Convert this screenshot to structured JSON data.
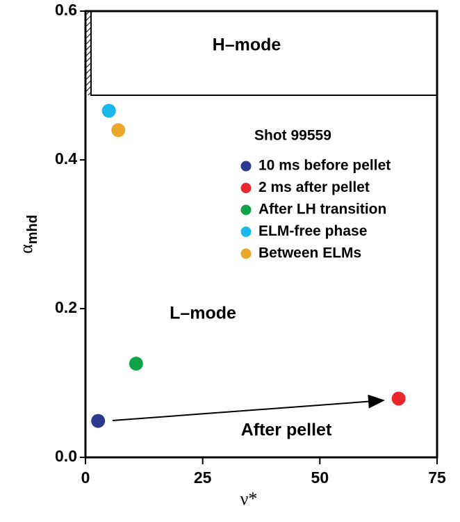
{
  "chart_data": {
    "type": "scatter",
    "xlabel": "ν*",
    "ylabel": "α",
    "ylabel_sub": "mhd",
    "xlim": [
      0,
      75
    ],
    "ylim": [
      0,
      0.6
    ],
    "xticks": [
      0,
      25,
      50,
      75
    ],
    "yticks": [
      {
        "value": 0,
        "label": "0.0"
      },
      {
        "value": 0.2,
        "label": "0.2"
      },
      {
        "value": 0.4,
        "label": "0.4"
      },
      {
        "value": 0.6,
        "label": "0.6"
      }
    ],
    "legend_title": "Shot 99559",
    "annotations": [
      "H–mode",
      "L–mode",
      "After pellet"
    ],
    "series": [
      {
        "name": "10 ms before pellet",
        "color": "#2b3990",
        "x": [
          2.7
        ],
        "values": [
          0.049
        ]
      },
      {
        "name": "2 ms after pellet",
        "color": "#e8262b",
        "x": [
          66.8
        ],
        "values": [
          0.079
        ]
      },
      {
        "name": "After LH transition",
        "color": "#12a24a",
        "x": [
          10.8
        ],
        "values": [
          0.126
        ]
      },
      {
        "name": "ELM-free phase",
        "color": "#1ab7ea",
        "x": [
          5.0
        ],
        "values": [
          0.466
        ]
      },
      {
        "name": "Between ELMs",
        "color": "#eaa72c",
        "x": [
          7.0
        ],
        "values": [
          0.44
        ]
      }
    ]
  }
}
